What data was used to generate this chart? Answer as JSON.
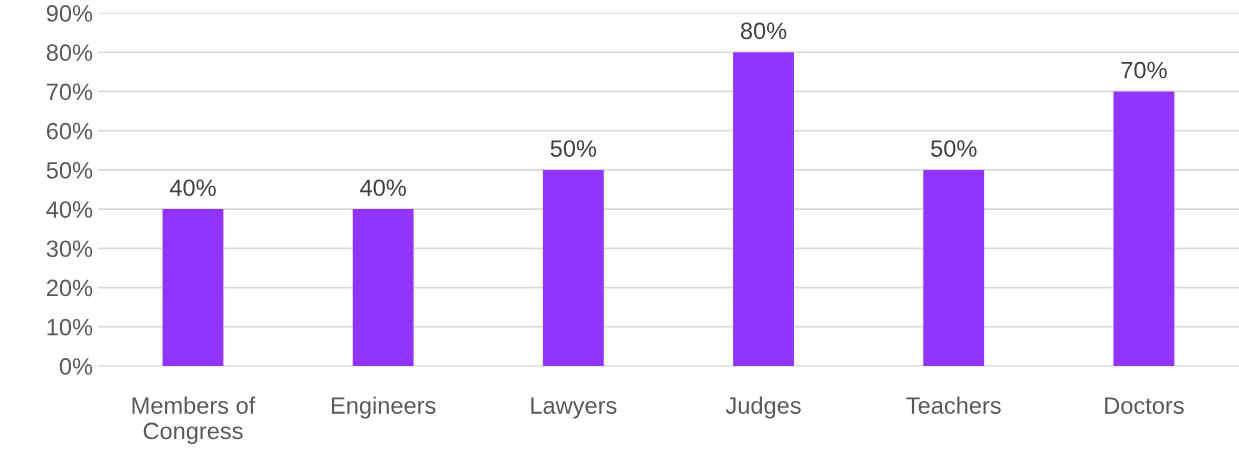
{
  "chart_data": {
    "type": "bar",
    "categories": [
      "Members of\nCongress",
      "Engineers",
      "Lawyers",
      "Judges",
      "Teachers",
      "Doctors"
    ],
    "values": [
      40,
      40,
      50,
      80,
      50,
      70
    ],
    "value_labels": [
      "40%",
      "40%",
      "50%",
      "80%",
      "50%",
      "70%"
    ],
    "color": "#9234ff",
    "ylim": [
      0,
      90
    ],
    "yticks": [
      {
        "value": 0,
        "label": "0%"
      },
      {
        "value": 10,
        "label": "10%"
      },
      {
        "value": 20,
        "label": "20%"
      },
      {
        "value": 30,
        "label": "30%"
      },
      {
        "value": 40,
        "label": "40%"
      },
      {
        "value": 50,
        "label": "50%"
      },
      {
        "value": 60,
        "label": "60%"
      },
      {
        "value": 70,
        "label": "70%"
      },
      {
        "value": 80,
        "label": "80%"
      },
      {
        "value": 90,
        "label": "90%"
      }
    ],
    "grid": "y"
  }
}
